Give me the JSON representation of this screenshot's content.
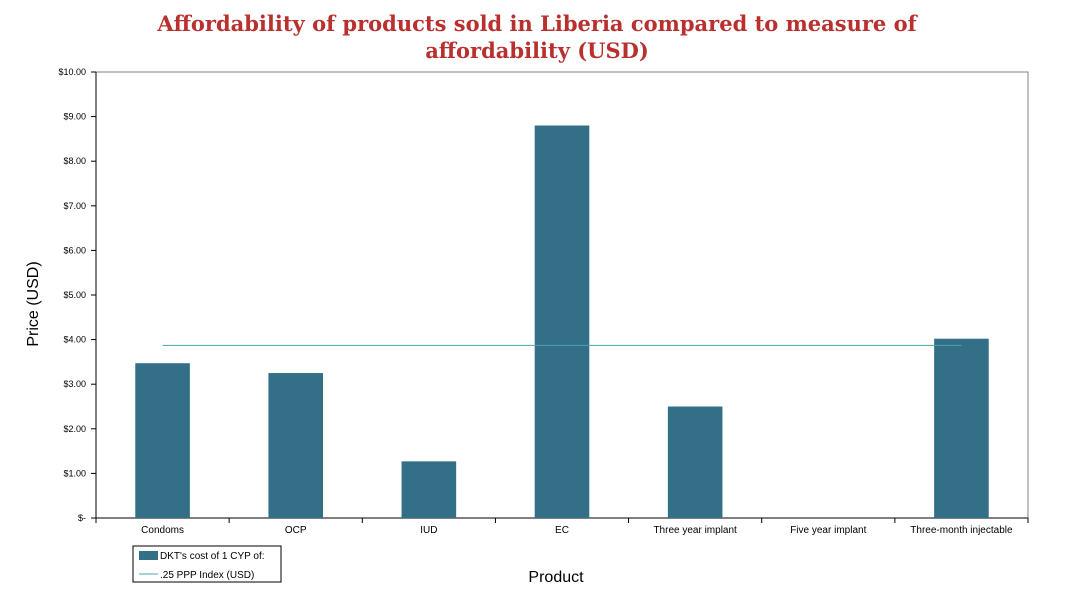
{
  "chart_data": {
    "type": "bar",
    "title": "Affordability of products sold in Liberia compared to measure of affordability (USD)",
    "xlabel": "Product",
    "ylabel": "Price (USD)",
    "ylim": [
      0,
      10
    ],
    "yticks": [
      0,
      1,
      2,
      3,
      4,
      5,
      6,
      7,
      8,
      9,
      10
    ],
    "ytick_labels": [
      "$-",
      "$1.00",
      "$2.00",
      "$3.00",
      "$4.00",
      "$5.00",
      "$6.00",
      "$7.00",
      "$8.00",
      "$9.00",
      "$10.00"
    ],
    "categories": [
      "Condoms",
      "OCP",
      "IUD",
      "EC",
      "Three year implant",
      "Five year implant",
      "Three-month injectable"
    ],
    "series": [
      {
        "name": "DKT's cost of 1 CYP of:",
        "type": "bar",
        "color": "#336f86",
        "values": [
          3.47,
          3.25,
          1.27,
          8.8,
          2.5,
          null,
          4.02
        ]
      },
      {
        "name": ".25 PPP Index (USD)",
        "type": "line",
        "color": "#4aa3b5",
        "values": [
          3.87,
          3.87,
          3.87,
          3.87,
          3.87,
          3.87,
          3.87
        ]
      }
    ],
    "grid": false,
    "legend": "bottom-left"
  }
}
